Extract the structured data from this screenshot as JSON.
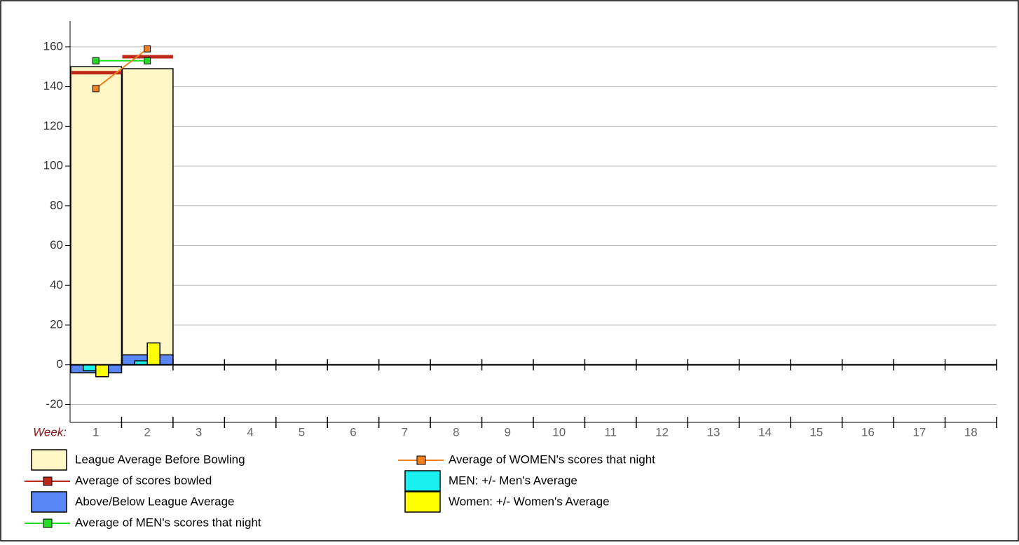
{
  "chart_data": {
    "type": "combo",
    "x_label": "Week:",
    "categories": [
      "1",
      "2",
      "3",
      "4",
      "5",
      "6",
      "7",
      "8",
      "9",
      "10",
      "11",
      "12",
      "13",
      "14",
      "15",
      "16",
      "17",
      "18"
    ],
    "ylim": [
      -29,
      173
    ],
    "yticks": [
      -20,
      0,
      20,
      40,
      60,
      80,
      100,
      120,
      140,
      160
    ],
    "grid": true,
    "series": [
      {
        "name": "League Average Before Bowling",
        "type": "bar",
        "color": "#fff8c6",
        "values": [
          150,
          149,
          null,
          null,
          null,
          null,
          null,
          null,
          null,
          null,
          null,
          null,
          null,
          null,
          null,
          null,
          null,
          null
        ]
      },
      {
        "name": "Average of scores bowled",
        "type": "level",
        "color": "#c0281c",
        "values": [
          147,
          155,
          null,
          null,
          null,
          null,
          null,
          null,
          null,
          null,
          null,
          null,
          null,
          null,
          null,
          null,
          null,
          null
        ]
      },
      {
        "name": "Above/Below League Average",
        "type": "bar",
        "color": "#5a87f8",
        "values": [
          -4,
          5,
          null,
          null,
          null,
          null,
          null,
          null,
          null,
          null,
          null,
          null,
          null,
          null,
          null,
          null,
          null,
          null
        ]
      },
      {
        "name": "Average of MEN's scores that night",
        "type": "line",
        "color": "#22dd22",
        "values": [
          153,
          153,
          null,
          null,
          null,
          null,
          null,
          null,
          null,
          null,
          null,
          null,
          null,
          null,
          null,
          null,
          null,
          null
        ]
      },
      {
        "name": "Average of WOMEN's scores that night",
        "type": "line",
        "color": "#f08020",
        "values": [
          139,
          159,
          null,
          null,
          null,
          null,
          null,
          null,
          null,
          null,
          null,
          null,
          null,
          null,
          null,
          null,
          null,
          null
        ]
      },
      {
        "name": "MEN: +/- Men's Average",
        "type": "narrow-left",
        "color": "#19f0f0",
        "values": [
          -3,
          2,
          null,
          null,
          null,
          null,
          null,
          null,
          null,
          null,
          null,
          null,
          null,
          null,
          null,
          null,
          null,
          null
        ]
      },
      {
        "name": "Women: +/- Women's Average",
        "type": "narrow-right",
        "color": "#ffff00",
        "values": [
          -6,
          11,
          null,
          null,
          null,
          null,
          null,
          null,
          null,
          null,
          null,
          null,
          null,
          null,
          null,
          null,
          null,
          null
        ]
      }
    ]
  }
}
